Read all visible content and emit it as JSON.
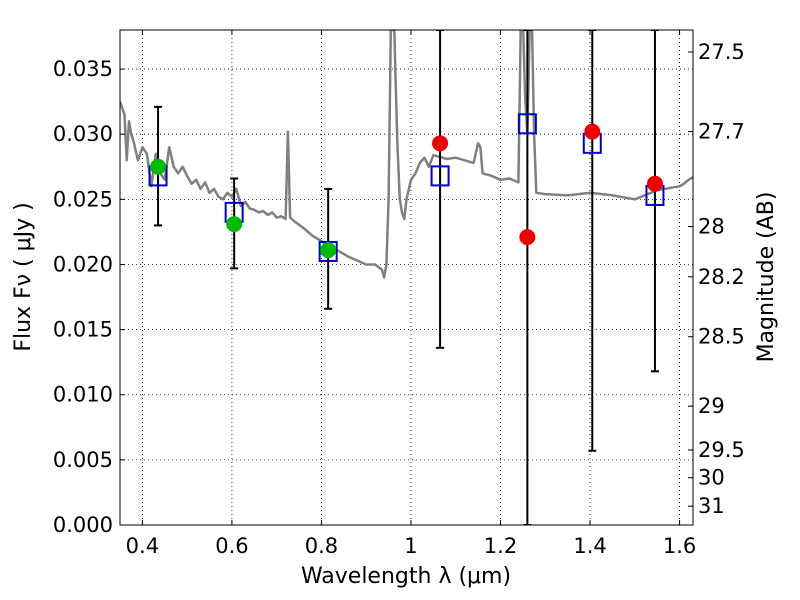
{
  "chart_data": {
    "type": "scatter",
    "xlabel": "Wavelength  λ (μm)",
    "ylabel": "Flux  Fν  ( μJy )",
    "y2label": "Magnitude (AB)",
    "xlim": [
      0.35,
      1.63
    ],
    "ylim": [
      0.0,
      0.038
    ],
    "grid": true,
    "x_ticks": [
      0.4,
      0.6,
      0.8,
      1.0,
      1.2,
      1.4,
      1.6
    ],
    "x_tick_labels": [
      "0.4",
      "0.6",
      "0.8",
      "1",
      "1.2",
      "1.4",
      "1.6"
    ],
    "y_ticks": [
      0.0,
      0.005,
      0.01,
      0.015,
      0.02,
      0.025,
      0.03,
      0.035
    ],
    "y_tick_labels": [
      "0.000",
      "0.005",
      "0.010",
      "0.015",
      "0.020",
      "0.025",
      "0.030",
      "0.035"
    ],
    "mag_ticks": [
      27.5,
      27.7,
      28,
      28.2,
      28.5,
      29,
      29.5,
      30,
      31
    ],
    "mag_tick_labels": [
      "27.5",
      "27.7",
      "28",
      "28.2",
      "28.5",
      "29",
      "29.5",
      "30",
      "31"
    ],
    "colors": {
      "template": "#808080",
      "model": "#0000cc",
      "detection": "#00bb00",
      "upper_limit": "#ee0000",
      "errorbar": "#000000"
    },
    "series": [
      {
        "marker": "line",
        "x": [
          0.35,
          0.36,
          0.365,
          0.37,
          0.375,
          0.38,
          0.39,
          0.4,
          0.41,
          0.42,
          0.43,
          0.44,
          0.45,
          0.46,
          0.47,
          0.48,
          0.49,
          0.5,
          0.51,
          0.52,
          0.53,
          0.54,
          0.55,
          0.56,
          0.57,
          0.58,
          0.59,
          0.6,
          0.61,
          0.62,
          0.63,
          0.64,
          0.65,
          0.66,
          0.67,
          0.68,
          0.69,
          0.7,
          0.71,
          0.72,
          0.725,
          0.73,
          0.74,
          0.76,
          0.78,
          0.8,
          0.82,
          0.84,
          0.86,
          0.88,
          0.9,
          0.92,
          0.935,
          0.94,
          0.945,
          0.95,
          0.955,
          0.96,
          0.962,
          0.965,
          0.97,
          0.975,
          0.98,
          0.985,
          0.99,
          1.0,
          1.01,
          1.02,
          1.03,
          1.04,
          1.05,
          1.06,
          1.08,
          1.1,
          1.12,
          1.14,
          1.15,
          1.155,
          1.16,
          1.18,
          1.2,
          1.22,
          1.24,
          1.245,
          1.25,
          1.255,
          1.26,
          1.265,
          1.27,
          1.275,
          1.28,
          1.3,
          1.35,
          1.4,
          1.45,
          1.5,
          1.55,
          1.6,
          1.61,
          1.62,
          1.63
        ],
        "y": [
          0.0325,
          0.0315,
          0.028,
          0.031,
          0.03,
          0.0295,
          0.028,
          0.029,
          0.0285,
          0.026,
          0.0285,
          0.027,
          0.0265,
          0.029,
          0.0275,
          0.027,
          0.0275,
          0.0268,
          0.0262,
          0.0265,
          0.0258,
          0.0263,
          0.0255,
          0.0258,
          0.0252,
          0.025,
          0.0255,
          0.0252,
          0.0258,
          0.0245,
          0.0248,
          0.0243,
          0.0242,
          0.024,
          0.0241,
          0.0238,
          0.024,
          0.0236,
          0.0237,
          0.0235,
          0.0302,
          0.0236,
          0.0233,
          0.0228,
          0.0222,
          0.0218,
          0.0213,
          0.021,
          0.0206,
          0.0203,
          0.02,
          0.02,
          0.0196,
          0.019,
          0.02,
          0.025,
          0.038,
          0.038,
          0.039,
          0.035,
          0.029,
          0.025,
          0.024,
          0.0235,
          0.025,
          0.0265,
          0.027,
          0.0278,
          0.0282,
          0.0275,
          0.0284,
          0.0283,
          0.0281,
          0.0282,
          0.028,
          0.0278,
          0.0293,
          0.029,
          0.027,
          0.0268,
          0.0265,
          0.0266,
          0.0263,
          0.038,
          0.039,
          0.033,
          0.03,
          0.038,
          0.039,
          0.03,
          0.0255,
          0.0254,
          0.0253,
          0.0255,
          0.0253,
          0.025,
          0.0257,
          0.026,
          0.0262,
          0.0265,
          0.0267
        ]
      },
      {
        "marker": "open-square",
        "x": [
          0.435,
          0.605,
          0.815,
          1.065,
          1.26,
          1.405,
          1.545
        ],
        "y": [
          0.0268,
          0.024,
          0.021,
          0.0268,
          0.0308,
          0.0293,
          0.0253
        ]
      },
      {
        "marker": "filled-circle",
        "x": [
          0.435,
          0.605,
          0.815
        ],
        "y": [
          0.0275,
          0.0231,
          0.0211
        ],
        "yerr_low": [
          0.023,
          0.0197,
          0.0166
        ],
        "yerr_high": [
          0.0321,
          0.0266,
          0.0258
        ]
      },
      {
        "marker": "filled-circle",
        "x": [
          1.065,
          1.26,
          1.405,
          1.545
        ],
        "y": [
          0.0293,
          0.0221,
          0.0302,
          0.0262
        ],
        "yerr_low": [
          0.0136,
          0.0,
          0.0057,
          0.0118
        ],
        "yerr_high": [
          0.038,
          0.038,
          0.038,
          0.038
        ]
      }
    ]
  }
}
